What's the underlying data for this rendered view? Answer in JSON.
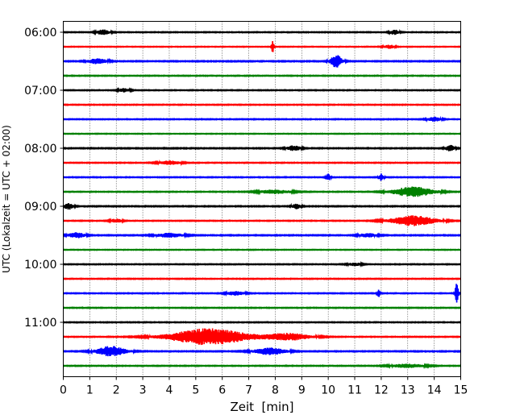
{
  "chart_data": {
    "type": "line",
    "title": "",
    "xlabel": "Zeit  [min]",
    "ylabel": "UTC (Lokalzeit = UTC + 02:00)",
    "xlim": [
      0,
      15
    ],
    "xticks": [
      0,
      1,
      2,
      3,
      4,
      5,
      6,
      7,
      8,
      9,
      10,
      11,
      12,
      13,
      14,
      15
    ],
    "ytick_labels": [
      "06:00",
      "07:00",
      "08:00",
      "09:00",
      "10:00",
      "11:00"
    ],
    "grid": "vertical dotted at x ticks",
    "trace_interval_min": 15,
    "trace_colors": [
      "#000000",
      "#ff0000",
      "#0000ff",
      "#008000"
    ],
    "traces": [
      {
        "start": "06:00",
        "color": "#000000",
        "amp": 0.35,
        "bursts": [
          [
            1.5,
            0.6,
            0.8
          ],
          [
            12.5,
            0.4,
            0.8
          ]
        ]
      },
      {
        "start": "06:15",
        "color": "#ff0000",
        "amp": 0.3,
        "bursts": [
          [
            7.9,
            0.1,
            2.0
          ],
          [
            12.3,
            0.5,
            0.6
          ]
        ]
      },
      {
        "start": "06:30",
        "color": "#0000ff",
        "amp": 0.4,
        "bursts": [
          [
            1.3,
            0.8,
            0.9
          ],
          [
            10.3,
            0.5,
            2.0
          ]
        ]
      },
      {
        "start": "06:45",
        "color": "#008000",
        "amp": 0.35,
        "bursts": []
      },
      {
        "start": "07:00",
        "color": "#000000",
        "amp": 0.35,
        "bursts": [
          [
            2.3,
            0.5,
            0.6
          ]
        ]
      },
      {
        "start": "07:15",
        "color": "#ff0000",
        "amp": 0.35,
        "bursts": []
      },
      {
        "start": "07:30",
        "color": "#0000ff",
        "amp": 0.35,
        "bursts": [
          [
            14.0,
            0.6,
            0.7
          ]
        ]
      },
      {
        "start": "07:45",
        "color": "#008000",
        "amp": 0.3,
        "bursts": []
      },
      {
        "start": "08:00",
        "color": "#000000",
        "amp": 0.4,
        "bursts": [
          [
            8.7,
            0.6,
            0.8
          ],
          [
            14.6,
            0.4,
            1.0
          ]
        ]
      },
      {
        "start": "08:15",
        "color": "#ff0000",
        "amp": 0.35,
        "bursts": [
          [
            4.0,
            1.0,
            0.6
          ]
        ]
      },
      {
        "start": "08:30",
        "color": "#0000ff",
        "amp": 0.35,
        "bursts": [
          [
            10.0,
            0.2,
            1.2
          ],
          [
            12.0,
            0.2,
            1.2
          ]
        ]
      },
      {
        "start": "08:45",
        "color": "#008000",
        "amp": 0.35,
        "bursts": [
          [
            13.2,
            1.8,
            1.6
          ],
          [
            8.0,
            1.5,
            0.6
          ]
        ]
      },
      {
        "start": "09:00",
        "color": "#000000",
        "amp": 0.4,
        "bursts": [
          [
            0.2,
            0.4,
            1.0
          ],
          [
            8.8,
            0.4,
            0.8
          ]
        ]
      },
      {
        "start": "09:15",
        "color": "#ff0000",
        "amp": 0.35,
        "bursts": [
          [
            13.2,
            2.0,
            1.6
          ],
          [
            2.0,
            0.5,
            0.6
          ]
        ]
      },
      {
        "start": "09:30",
        "color": "#0000ff",
        "amp": 0.4,
        "bursts": [
          [
            0.5,
            0.7,
            0.9
          ],
          [
            4.0,
            1.2,
            0.7
          ],
          [
            11.5,
            0.8,
            0.6
          ]
        ]
      },
      {
        "start": "09:45",
        "color": "#008000",
        "amp": 0.3,
        "bursts": []
      },
      {
        "start": "10:00",
        "color": "#000000",
        "amp": 0.35,
        "bursts": [
          [
            11.0,
            0.6,
            0.5
          ]
        ]
      },
      {
        "start": "10:15",
        "color": "#ff0000",
        "amp": 0.35,
        "bursts": []
      },
      {
        "start": "10:30",
        "color": "#0000ff",
        "amp": 0.35,
        "bursts": [
          [
            11.9,
            0.15,
            1.3
          ],
          [
            14.85,
            0.15,
            3.2
          ],
          [
            6.5,
            0.8,
            0.6
          ]
        ]
      },
      {
        "start": "10:45",
        "color": "#008000",
        "amp": 0.35,
        "bursts": []
      },
      {
        "start": "11:00",
        "color": "#000000",
        "amp": 0.35,
        "bursts": []
      },
      {
        "start": "11:15",
        "color": "#ff0000",
        "amp": 0.35,
        "bursts": [
          [
            5.5,
            3.5,
            2.6
          ],
          [
            8.5,
            2.0,
            1.1
          ]
        ]
      },
      {
        "start": "11:30",
        "color": "#0000ff",
        "amp": 0.4,
        "bursts": [
          [
            1.8,
            1.3,
            1.6
          ],
          [
            7.8,
            1.4,
            1.1
          ]
        ]
      },
      {
        "start": "11:45",
        "color": "#008000",
        "amp": 0.35,
        "bursts": [
          [
            13.0,
            1.5,
            0.6
          ]
        ]
      }
    ]
  }
}
